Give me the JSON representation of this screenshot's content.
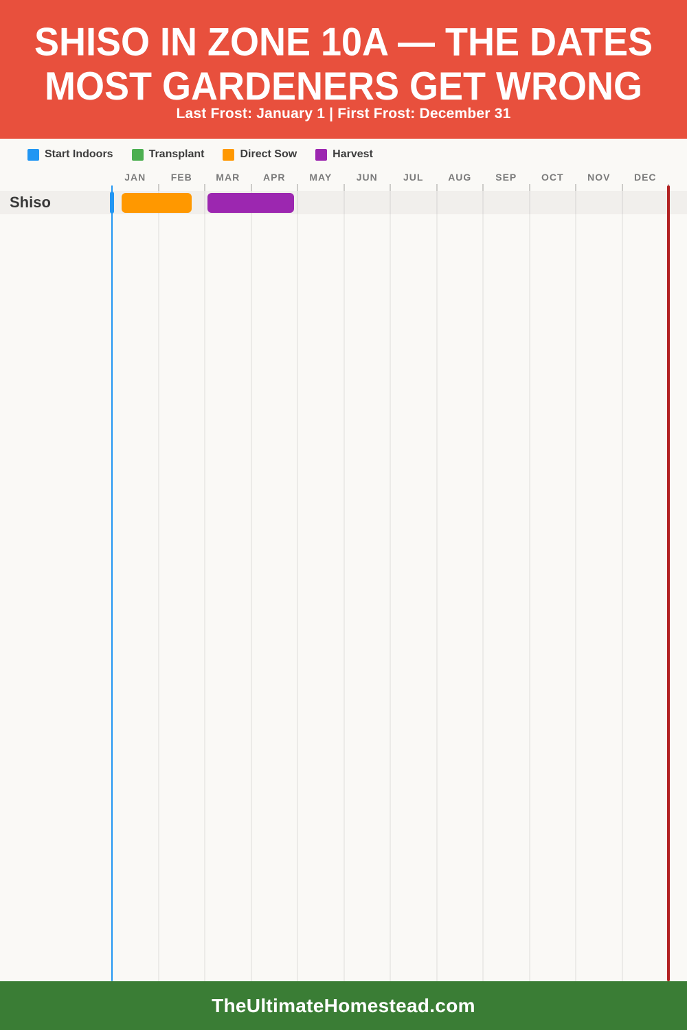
{
  "header": {
    "title_line1": "SHISO IN ZONE 10A — THE DATES",
    "title_line2": "MOST GARDENERS GET WRONG",
    "subtitle": "Last Frost: January 1 | First Frost: December 31",
    "background": "#E8503D",
    "text_color": "#FFFFFF"
  },
  "legend": [
    {
      "label": "Start Indoors",
      "color": "#2196F3"
    },
    {
      "label": "Transplant",
      "color": "#4CAF50"
    },
    {
      "label": "Direct Sow",
      "color": "#FF9800"
    },
    {
      "label": "Harvest",
      "color": "#9C27B0"
    }
  ],
  "chart_data": {
    "type": "gantt-timeline",
    "title": "Shiso planting calendar for Zone 10a",
    "x_axis": {
      "unit": "months",
      "tick_labels": [
        "JAN",
        "FEB",
        "MAR",
        "APR",
        "MAY",
        "JUN",
        "JUL",
        "AUG",
        "SEP",
        "OCT",
        "NOV",
        "DEC"
      ],
      "range_months": [
        0,
        12
      ],
      "grid": true
    },
    "rows": [
      {
        "label": "Shiso",
        "bars": [
          {
            "task": "Start Indoors",
            "color": "#2196F3",
            "start_month": -0.05,
            "end_month": 0.05,
            "approx_dates": "Jan 1",
            "shape": "pill-marker"
          },
          {
            "task": "Direct Sow",
            "color": "#FF9800",
            "start_month": 0.21,
            "end_month": 1.72,
            "approx_dates": "early Jan – late Feb",
            "shape": "bar"
          },
          {
            "task": "Harvest",
            "color": "#9C27B0",
            "start_month": 2.06,
            "end_month": 3.93,
            "approx_dates": "early Mar – late Apr",
            "shape": "bar"
          }
        ]
      }
    ],
    "frost_lines": [
      {
        "name": "last-frost",
        "month": 0,
        "date": "January 1",
        "color": "#2196F3"
      },
      {
        "name": "first-frost",
        "month": 12,
        "date": "December 31",
        "color": "#B22222"
      }
    ]
  },
  "footer": {
    "text": "TheUltimateHomestead.com",
    "background": "#3A7D35"
  }
}
